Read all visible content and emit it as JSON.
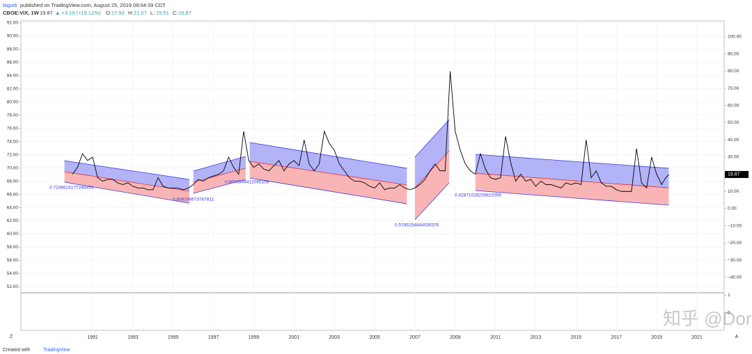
{
  "header": {
    "author": "bigurb",
    "published": "published on TradingView.com, August 25, 2019 08:04:39 CDT",
    "symbol": "CBOE:VIX, 1W",
    "price": "19.87",
    "change": "▲ +3.19 (+19.12%)",
    "ohlc": [
      {
        "label": "O:",
        "value": "17.93"
      },
      {
        "label": "H:",
        "value": "21.07"
      },
      {
        "label": "L:",
        "value": "15.51"
      },
      {
        "label": "C:",
        "value": "19.87"
      }
    ]
  },
  "chart_data": {
    "type": "line",
    "x": [
      1990,
      1990.25,
      1990.5,
      1990.75,
      1991,
      1991.25,
      1991.5,
      1991.75,
      1992,
      1992.25,
      1992.5,
      1992.75,
      1993,
      1993.25,
      1993.5,
      1993.75,
      1994,
      1994.25,
      1994.5,
      1994.75,
      1995,
      1995.25,
      1995.5,
      1995.75,
      1996,
      1996.25,
      1996.5,
      1996.75,
      1997,
      1997.25,
      1997.5,
      1997.75,
      1998,
      1998.25,
      1998.5,
      1998.75,
      1999,
      1999.25,
      1999.5,
      1999.75,
      2000,
      2000.25,
      2000.5,
      2000.75,
      2001,
      2001.25,
      2001.5,
      2001.75,
      2002,
      2002.25,
      2002.5,
      2002.75,
      2003,
      2003.25,
      2003.5,
      2003.75,
      2004,
      2004.25,
      2004.5,
      2004.75,
      2005,
      2005.25,
      2005.5,
      2005.75,
      2006,
      2006.25,
      2006.5,
      2006.75,
      2007,
      2007.25,
      2007.5,
      2007.75,
      2008,
      2008.25,
      2008.5,
      2008.75,
      2009,
      2009.25,
      2009.5,
      2009.75,
      2010,
      2010.25,
      2010.5,
      2010.75,
      2011,
      2011.25,
      2011.5,
      2011.75,
      2012,
      2012.25,
      2012.5,
      2012.75,
      2013,
      2013.25,
      2013.5,
      2013.75,
      2014,
      2014.25,
      2014.5,
      2014.75,
      2015,
      2015.25,
      2015.5,
      2015.75,
      2016,
      2016.25,
      2016.5,
      2016.75,
      2017,
      2017.25,
      2017.5,
      2017.75,
      2018,
      2018.25,
      2018.5,
      2018.75,
      2019,
      2019.25,
      2019.45,
      2019.62
    ],
    "series": [
      {
        "name": "CBOE:VIX",
        "color": "#000000",
        "values": [
          20,
          24,
          32,
          28,
          30,
          18,
          16,
          17,
          17,
          15,
          14,
          15,
          13,
          12,
          12,
          11,
          11,
          18,
          13,
          12,
          12,
          12,
          11,
          12,
          14,
          17,
          16,
          18,
          19,
          20,
          22,
          30,
          24,
          20,
          45,
          28,
          24,
          26,
          23,
          22,
          25,
          28,
          22,
          26,
          28,
          25,
          40,
          26,
          22,
          26,
          45,
          38,
          34,
          26,
          22,
          18,
          16,
          16,
          15,
          13,
          12,
          15,
          11,
          12,
          12,
          14,
          12,
          11,
          12,
          14,
          17,
          22,
          26,
          22,
          22,
          80,
          45,
          34,
          26,
          22,
          20,
          32,
          23,
          18,
          17,
          18,
          42,
          27,
          16,
          20,
          16,
          17,
          13,
          16,
          14,
          14,
          13,
          12,
          15,
          14,
          15,
          14,
          40,
          18,
          22,
          15,
          13,
          13,
          11,
          10,
          10,
          10,
          35,
          15,
          12,
          30,
          20,
          14,
          18,
          19.87
        ]
      }
    ],
    "channels": [
      {
        "label": "0.7246624177246453",
        "x": [
          1989.6,
          1995.8
        ],
        "upper": [
          27.9,
          17.0
        ],
        "middle": [
          21.5,
          10.1
        ],
        "lower": [
          15.4,
          3.2
        ]
      },
      {
        "label": "0.608166673767811",
        "x": [
          1996.0,
          1998.6
        ],
        "upper": [
          21.9,
          30.4
        ],
        "middle": [
          15.4,
          23.5
        ],
        "lower": [
          8.9,
          17.0
        ]
      },
      {
        "label": "0.6600849412095156",
        "x": [
          1998.8,
          2006.6
        ],
        "upper": [
          38.5,
          23.5
        ],
        "middle": [
          27.5,
          13.8
        ],
        "lower": [
          17.8,
          2.8
        ]
      },
      {
        "label": "0.5785254844039376",
        "x": [
          2007.0,
          2008.7
        ],
        "upper": [
          30.0,
          51.8
        ],
        "middle": [
          12.1,
          33.6
        ],
        "lower": [
          -6.5,
          15.0
        ]
      },
      {
        "label": "0.42871028235822056",
        "x": [
          2010.0,
          2019.6
        ],
        "upper": [
          31.6,
          23.5
        ],
        "middle": [
          20.6,
          12.1
        ],
        "lower": [
          10.5,
          2.0
        ]
      }
    ],
    "xlim": [
      1987.44,
      2022.35
    ],
    "xticks": [
      1991,
      1993,
      1995,
      1997,
      1999,
      2001,
      2003,
      2005,
      2007,
      2009,
      2011,
      2013,
      2015,
      2017,
      2019,
      2021
    ],
    "ylim": [
      -48.6,
      109.3
    ],
    "yticks": [
      {
        "value": 100,
        "label": "100.00"
      },
      {
        "value": 90,
        "label": "90.00"
      },
      {
        "value": 80,
        "label": "80.00"
      },
      {
        "value": 70,
        "label": "70.00"
      },
      {
        "value": 60,
        "label": "60.00"
      },
      {
        "value": 50,
        "label": "50.00"
      },
      {
        "value": 40,
        "label": "40.00"
      },
      {
        "value": 30,
        "label": "30.00"
      },
      {
        "value": 10,
        "label": "10.00"
      },
      {
        "value": 0,
        "label": "0.00"
      },
      {
        "value": -10,
        "label": "−10.00"
      },
      {
        "value": -20,
        "label": "−20.00"
      },
      {
        "value": -30,
        "label": "−30.00"
      },
      {
        "value": -40,
        "label": "−40.00"
      }
    ],
    "left_ylim": [
      51.2,
      92.3
    ],
    "left_yticks": [
      {
        "value": 92,
        "label": "92.00"
      },
      {
        "value": 90,
        "label": "90.00"
      },
      {
        "value": 88,
        "label": "88.00"
      },
      {
        "value": 86,
        "label": "86.00"
      },
      {
        "value": 84,
        "label": "84.00"
      },
      {
        "value": 82,
        "label": "82.00"
      },
      {
        "value": 80,
        "label": "80.00"
      },
      {
        "value": 78,
        "label": "78.00"
      },
      {
        "value": 76,
        "label": "76.00"
      },
      {
        "value": 74,
        "label": "74.00"
      },
      {
        "value": 72,
        "label": "72.00"
      },
      {
        "value": 70,
        "label": "70.00"
      },
      {
        "value": 68,
        "label": "68.00"
      },
      {
        "value": 66,
        "label": "66.00"
      },
      {
        "value": 64,
        "label": "64.00"
      },
      {
        "value": 62,
        "label": "62.00"
      },
      {
        "value": 60,
        "label": "60.00"
      },
      {
        "value": 58,
        "label": "58.00"
      },
      {
        "value": 56,
        "label": "56.00"
      },
      {
        "value": 54,
        "label": "54.00"
      },
      {
        "value": 52,
        "label": "52.00"
      }
    ],
    "pane2_ylim": [
      -1,
      1.1
    ],
    "pane2_yticks": [
      1,
      0
    ],
    "grid": true
  },
  "watermark": "知乎 @Dorian君",
  "footer": {
    "created": "Created with",
    "brand": "TradingView",
    "left_button": "Z",
    "right_button": "A"
  }
}
